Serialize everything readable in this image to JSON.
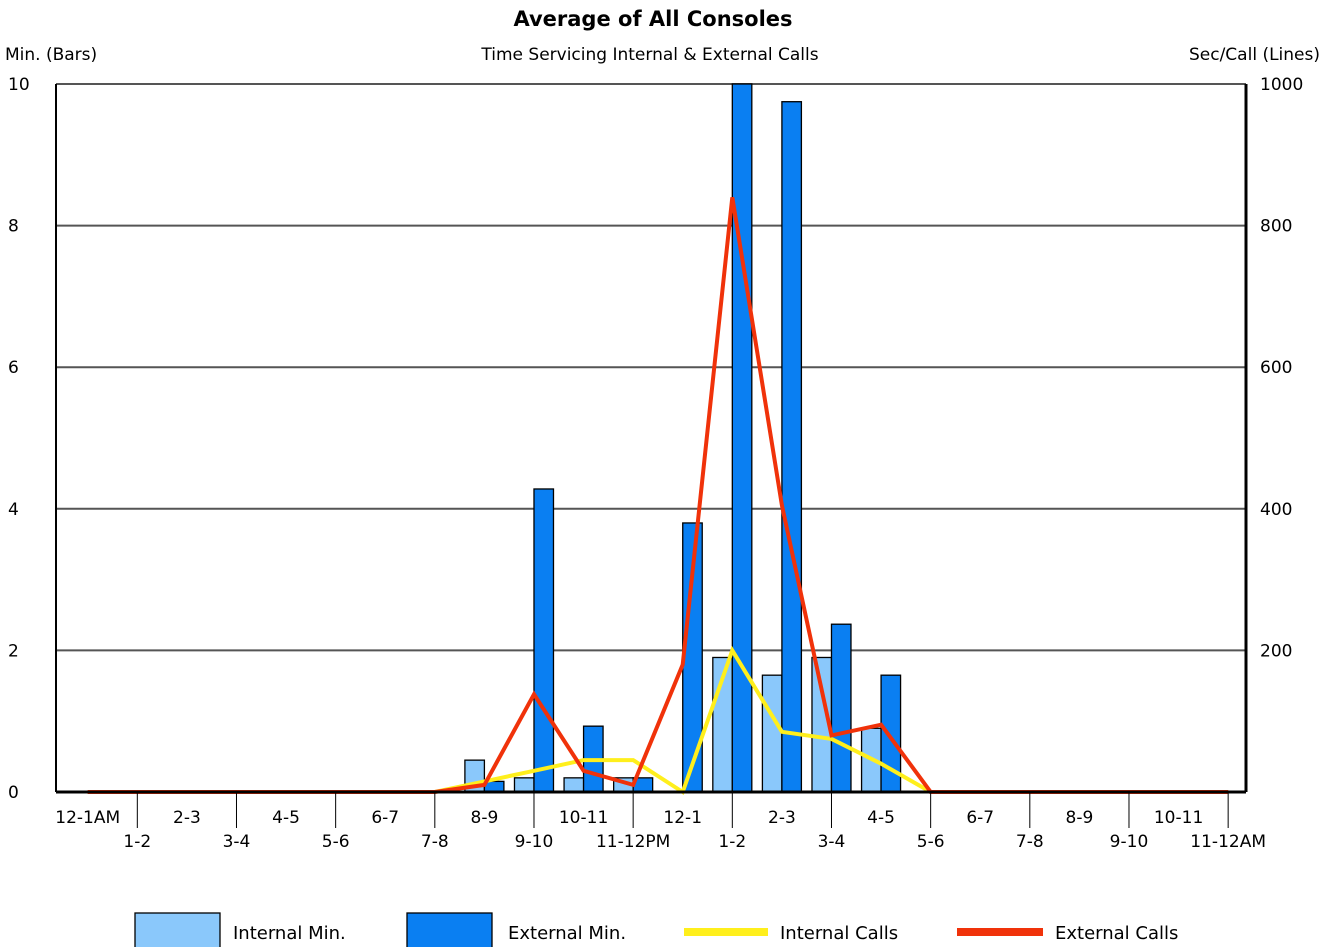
{
  "chart_data": {
    "type": "bar",
    "title": "Average of All Consoles",
    "subtitle": "Time Servicing Internal & External Calls",
    "ylabel_left": "Min. (Bars)",
    "ylabel_right": "Sec/Call (Lines)",
    "ylim_left": [
      0,
      10
    ],
    "ylim_right": [
      0,
      1000
    ],
    "yticks_left": [
      "0",
      "2",
      "4",
      "6",
      "8",
      "10"
    ],
    "yticks_right": [
      "200",
      "400",
      "600",
      "800",
      "1000"
    ],
    "grid": true,
    "legend_position": "bottom",
    "categories": [
      "12-1AM",
      "1-2",
      "2-3",
      "3-4",
      "4-5",
      "5-6",
      "6-7",
      "7-8",
      "8-9",
      "9-10",
      "10-11",
      "11-12PM",
      "12-1",
      "1-2",
      "2-3",
      "3-4",
      "4-5",
      "5-6",
      "6-7",
      "7-8",
      "8-9",
      "9-10",
      "10-11",
      "11-12AM"
    ],
    "series": [
      {
        "name": "Internal Min.",
        "kind": "bar",
        "axis": "left",
        "color": "#8ac8fb",
        "values": [
          0,
          0,
          0,
          0,
          0,
          0,
          0,
          0,
          0.45,
          0.2,
          0.2,
          0.2,
          0,
          1.9,
          1.65,
          1.9,
          0.9,
          0,
          0,
          0,
          0,
          0,
          0,
          0
        ]
      },
      {
        "name": "External Min.",
        "kind": "bar",
        "axis": "left",
        "color": "#0a7ff2",
        "values": [
          0,
          0,
          0,
          0,
          0,
          0,
          0,
          0,
          0.15,
          4.28,
          0.93,
          0.2,
          3.8,
          10.0,
          9.75,
          2.37,
          1.65,
          0,
          0,
          0,
          0,
          0,
          0,
          0
        ]
      },
      {
        "name": "Internal Calls",
        "kind": "line",
        "axis": "right",
        "color": "#ffef1c",
        "values": [
          0,
          0,
          0,
          0,
          0,
          0,
          0,
          0,
          15,
          30,
          45,
          45,
          0,
          200,
          85,
          75,
          40,
          0,
          0,
          0,
          0,
          0,
          0,
          0
        ]
      },
      {
        "name": "External Calls",
        "kind": "line",
        "axis": "right",
        "color": "#f0320a",
        "values": [
          0,
          0,
          0,
          0,
          0,
          0,
          0,
          0,
          10,
          138,
          30,
          10,
          180,
          840,
          405,
          80,
          95,
          0,
          0,
          0,
          0,
          0,
          0,
          0
        ]
      }
    ]
  }
}
